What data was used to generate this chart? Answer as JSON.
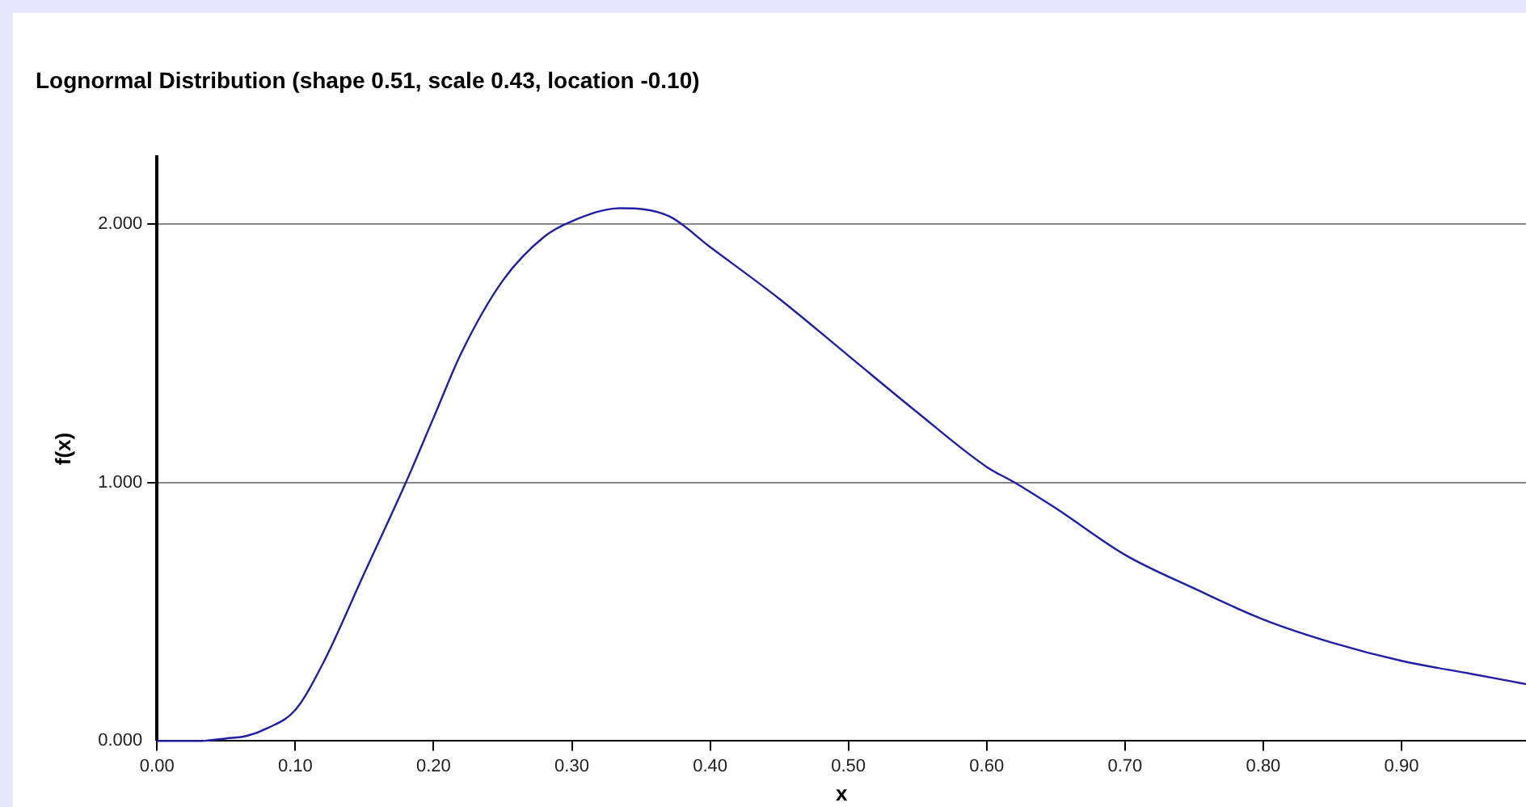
{
  "chart_data": {
    "type": "line",
    "title": "Lognormal Distribution (shape 0.51, scale 0.43, location -0.10)",
    "xlabel": "x",
    "ylabel": "f(x)",
    "x": [
      0,
      0.03,
      0.05,
      0.065,
      0.08,
      0.1,
      0.12,
      0.15,
      0.18,
      0.2,
      0.22,
      0.25,
      0.28,
      0.3,
      0.335,
      0.37,
      0.4,
      0.45,
      0.5,
      0.55,
      0.6,
      0.62,
      0.65,
      0.7,
      0.75,
      0.8,
      0.85,
      0.9,
      0.95,
      0.99
    ],
    "series": [
      {
        "color": "#1f1fa8",
        "values": [
          0,
          0,
          0.01,
          0.02,
          0.05,
          0.12,
          0.3,
          0.65,
          1.0,
          1.25,
          1.5,
          1.78,
          1.95,
          2.01,
          2.06,
          2.03,
          1.91,
          1.71,
          1.49,
          1.27,
          1.06,
          1.0,
          0.9,
          0.72,
          0.59,
          0.47,
          0.38,
          0.31,
          0.26,
          0.22
        ]
      }
    ],
    "xlim": [
      0,
      0.99
    ],
    "ylim": [
      0,
      2.26
    ],
    "xticks": [
      {
        "value": 0,
        "label": "0.00"
      },
      {
        "value": 0.1,
        "label": "0.10"
      },
      {
        "value": 0.2,
        "label": "0.20"
      },
      {
        "value": 0.3,
        "label": "0.30"
      },
      {
        "value": 0.4,
        "label": "0.40"
      },
      {
        "value": 0.5,
        "label": "0.50"
      },
      {
        "value": 0.6,
        "label": "0.60"
      },
      {
        "value": 0.7,
        "label": "0.70"
      },
      {
        "value": 0.8,
        "label": "0.80"
      },
      {
        "value": 0.9,
        "label": "0.90"
      }
    ],
    "yticks": [
      {
        "value": 0,
        "label": "0.000"
      },
      {
        "value": 1,
        "label": "1.000"
      },
      {
        "value": 2,
        "label": "2.000"
      }
    ],
    "grid": "y",
    "marker": "none",
    "line_style": "solid"
  }
}
